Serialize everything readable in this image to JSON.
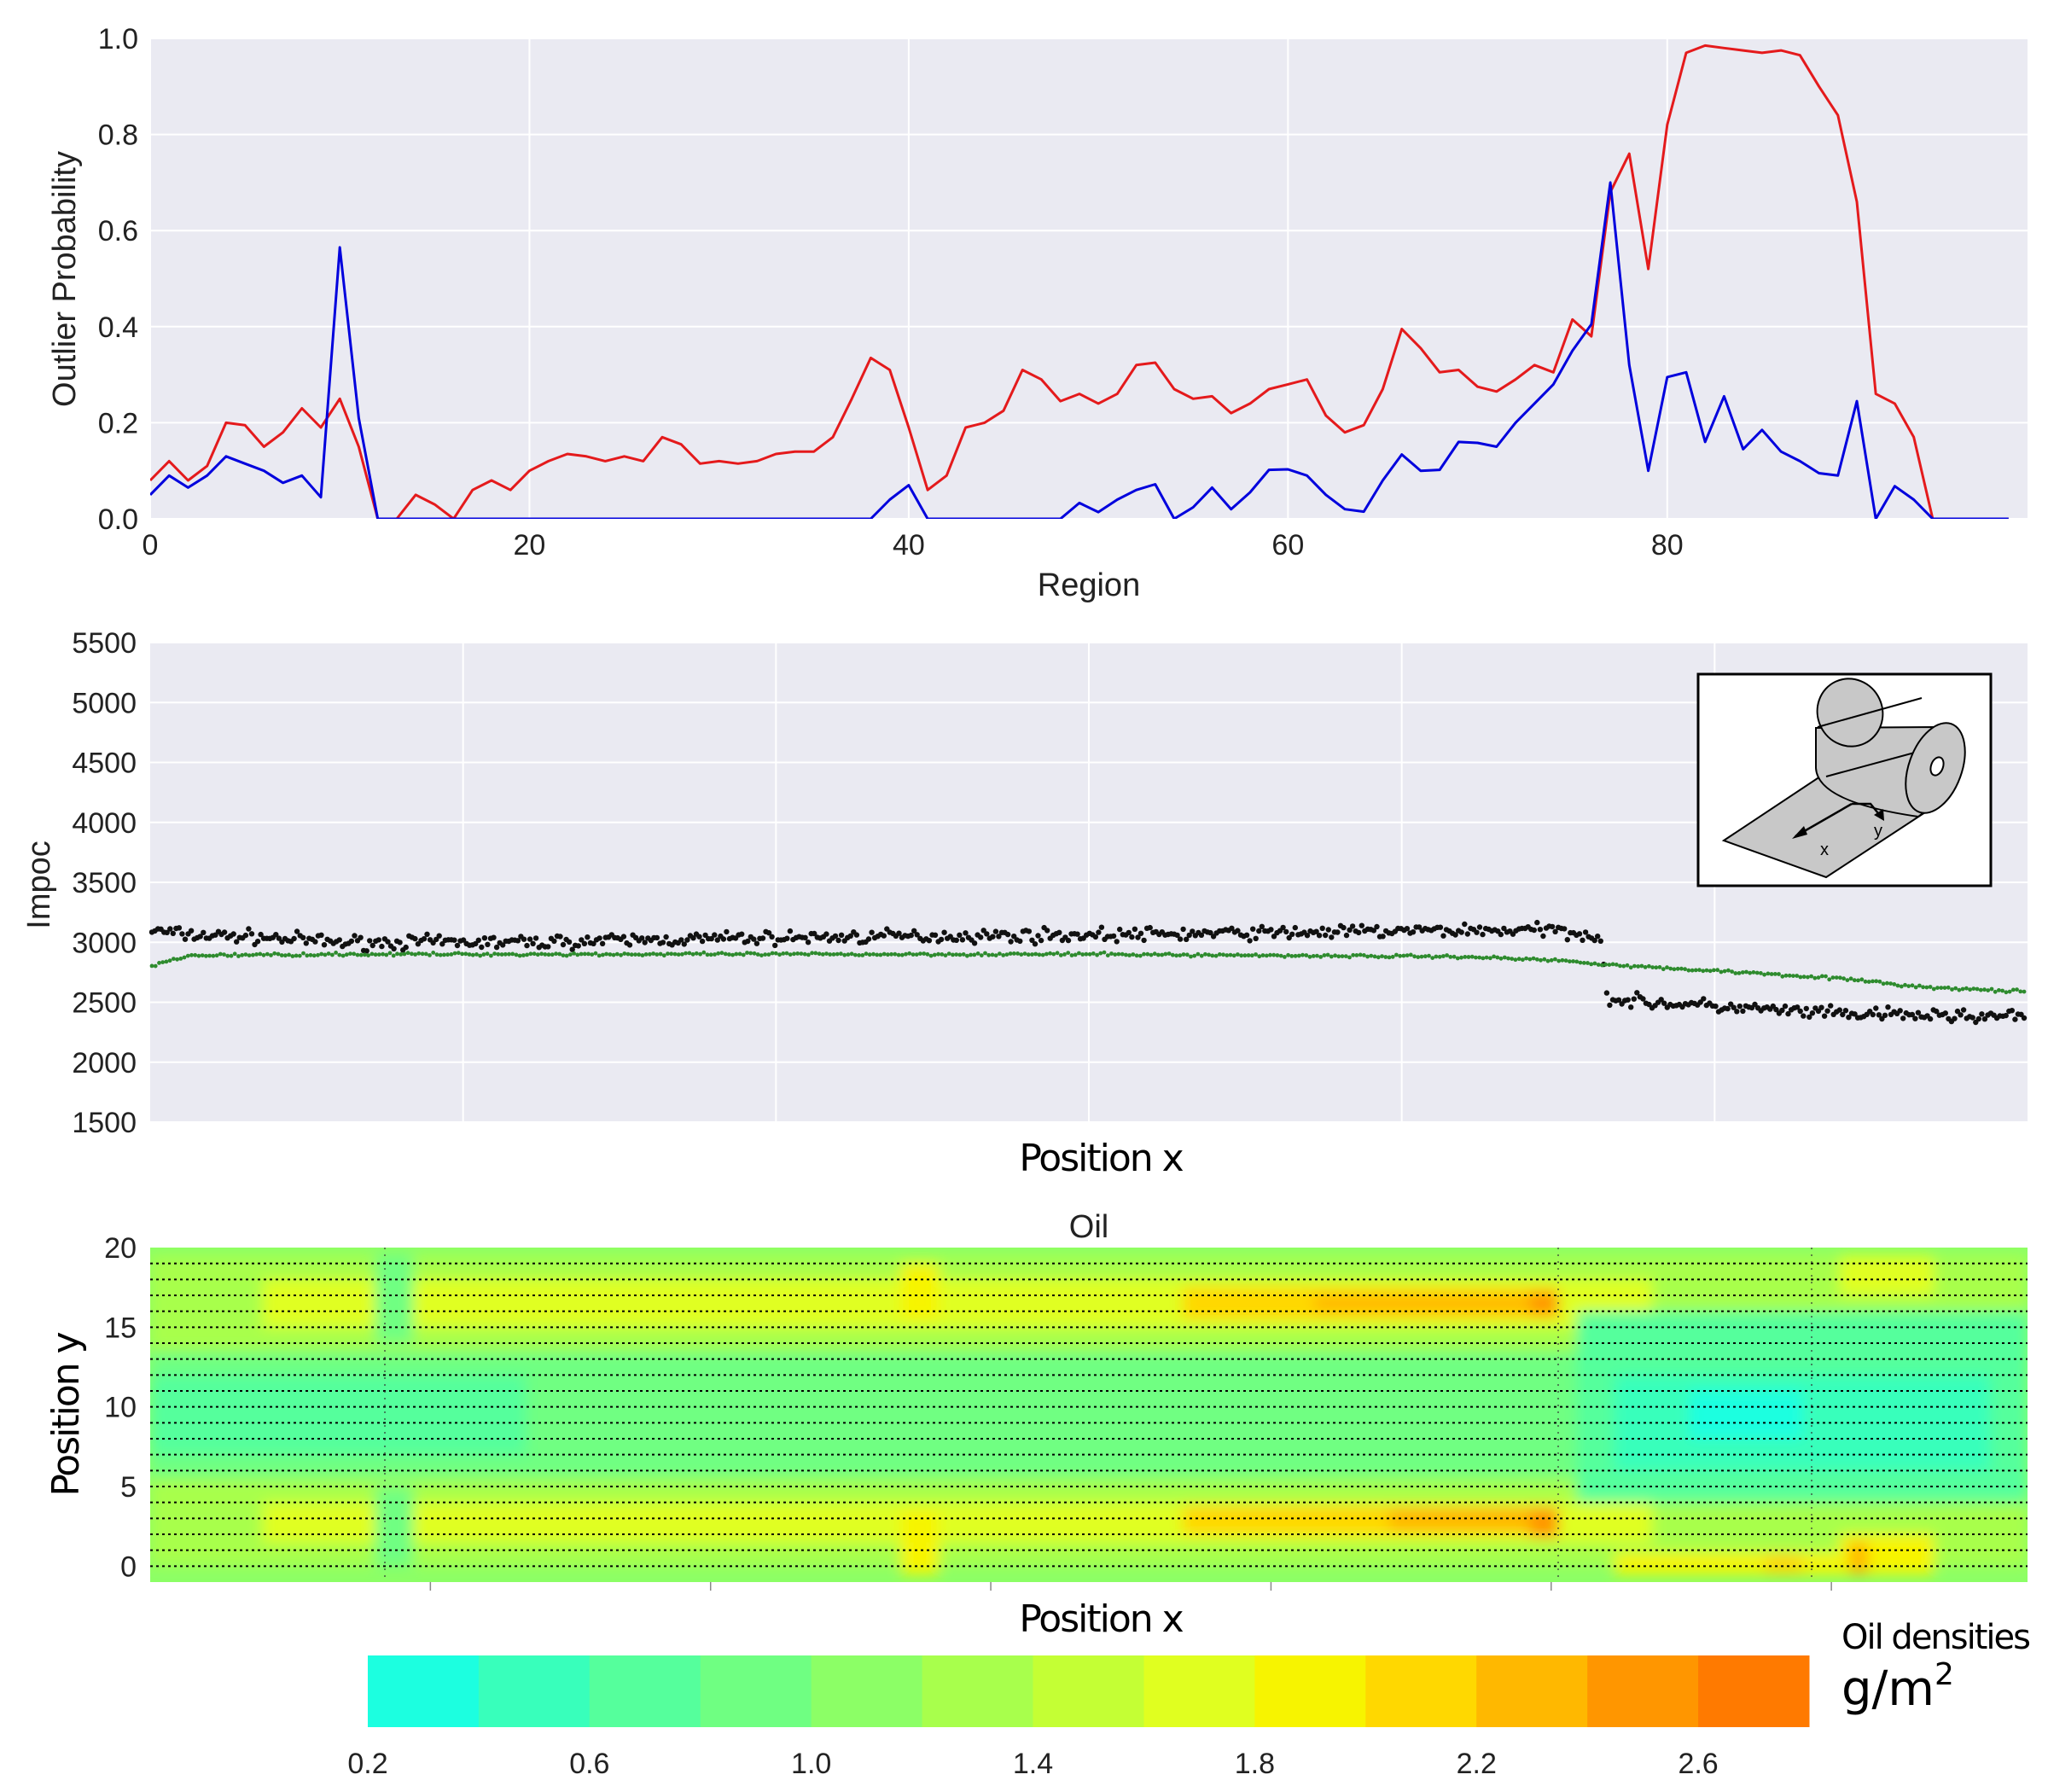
{
  "chart_data": [
    {
      "type": "line",
      "xlabel": "Region",
      "ylabel": "Outlier Probability",
      "xlim": [
        0,
        99
      ],
      "ylim": [
        0,
        1.0
      ],
      "xticks": [
        "0",
        "20",
        "40",
        "60",
        "80"
      ],
      "yticks": [
        "0.0",
        "0.2",
        "0.4",
        "0.6",
        "0.8",
        "1.0"
      ],
      "grid": true,
      "series": [
        {
          "color": "#e41a1c",
          "x_start": 0,
          "values": [
            0.08,
            0.12,
            0.08,
            0.11,
            0.2,
            0.195,
            0.15,
            0.18,
            0.23,
            0.19,
            0.25,
            0.15,
            0.0,
            0.0,
            0.05,
            0.03,
            0.0,
            0.06,
            0.08,
            0.06,
            0.1,
            0.12,
            0.135,
            0.13,
            0.12,
            0.13,
            0.12,
            0.17,
            0.155,
            0.115,
            0.12,
            0.115,
            0.12,
            0.135,
            0.14,
            0.14,
            0.17,
            0.25,
            0.335,
            0.31,
            0.19,
            0.06,
            0.09,
            0.19,
            0.2,
            0.225,
            0.31,
            0.29,
            0.245,
            0.26,
            0.24,
            0.26,
            0.32,
            0.325,
            0.27,
            0.25,
            0.255,
            0.22,
            0.24,
            0.27,
            0.28,
            0.29,
            0.215,
            0.18,
            0.195,
            0.27,
            0.395,
            0.355,
            0.305,
            0.31,
            0.275,
            0.265,
            0.29,
            0.32,
            0.305,
            0.415,
            0.38,
            0.68,
            0.76,
            0.52,
            0.82,
            0.97,
            0.985,
            0.98,
            0.975,
            0.97,
            0.975,
            0.965,
            0.9,
            0.84,
            0.66,
            0.26,
            0.24,
            0.17,
            0.0,
            0.0,
            0.0,
            0.0,
            0.0
          ]
        },
        {
          "color": "#0000dd",
          "x_start": 0,
          "values": [
            0.05,
            0.09,
            0.065,
            0.09,
            0.13,
            0.115,
            0.1,
            0.075,
            0.09,
            0.045,
            0.565,
            0.21,
            0.0,
            0.0,
            0.0,
            0.0,
            0.0,
            0.0,
            0.0,
            0.0,
            0.0,
            0.0,
            0.0,
            0.0,
            0.0,
            0.0,
            0.0,
            0.0,
            0.0,
            0.0,
            0.0,
            0.0,
            0.0,
            0.0,
            0.0,
            0.0,
            0.0,
            0.0,
            0.0,
            0.04,
            0.07,
            0.0,
            0.0,
            0.0,
            0.0,
            0.0,
            0.0,
            0.0,
            0.0,
            0.033,
            0.014,
            0.04,
            0.06,
            0.072,
            0.0,
            0.024,
            0.065,
            0.02,
            0.055,
            0.102,
            0.103,
            0.09,
            0.05,
            0.02,
            0.015,
            0.08,
            0.134,
            0.1,
            0.102,
            0.16,
            0.158,
            0.15,
            0.2,
            0.24,
            0.28,
            0.35,
            0.405,
            0.7,
            0.32,
            0.1,
            0.295,
            0.305,
            0.16,
            0.255,
            0.145,
            0.185,
            0.14,
            0.12,
            0.095,
            0.09,
            0.245,
            0.0,
            0.068,
            0.04,
            0.0,
            0.0,
            0.0,
            0.0,
            0.0
          ]
        }
      ]
    },
    {
      "type": "scatter",
      "xlabel": "Position x",
      "ylabel": "Impoc",
      "ylim": [
        1500,
        5500
      ],
      "yticks": [
        "1500",
        "2000",
        "2500",
        "3000",
        "3500",
        "4000",
        "4500",
        "5000",
        "5500"
      ],
      "xticks_labels_shown": false,
      "grid": true,
      "series": [
        {
          "color": "#111111",
          "x_profile": [
            0,
            0.02,
            0.05,
            0.1,
            0.2,
            0.3,
            0.4,
            0.5,
            0.6,
            0.7,
            0.75,
            0.775,
            0.776,
            0.8,
            0.85,
            0.9,
            1.0
          ],
          "y_profile": [
            3100,
            3060,
            3050,
            3000,
            3000,
            3030,
            3050,
            3060,
            3080,
            3100,
            3100,
            3050,
            2530,
            2500,
            2450,
            2400,
            2380
          ]
        },
        {
          "color": "#2e8b2e",
          "x_profile": [
            0,
            0.02,
            0.1,
            0.3,
            0.5,
            0.6,
            0.7,
            0.75,
            0.8,
            0.85,
            0.9,
            0.95,
            1.0
          ],
          "y_profile": [
            2800,
            2890,
            2900,
            2900,
            2900,
            2890,
            2880,
            2850,
            2790,
            2750,
            2700,
            2620,
            2590
          ]
        }
      ],
      "inset": {
        "labels": [
          "x",
          "y"
        ]
      }
    },
    {
      "type": "heatmap",
      "title": "Oil",
      "xlabel": "Position x",
      "ylabel": "Position y",
      "ylim": [
        -1,
        20
      ],
      "yticks": [
        "0",
        "5",
        "10",
        "15",
        "20"
      ],
      "colorbar": {
        "label": "Oil densities",
        "unit": "g/m",
        "unit_exp": "2",
        "ticks": [
          "0.2",
          "0.6",
          "1.0",
          "1.4",
          "1.8",
          "2.2",
          "2.6"
        ],
        "levels": [
          0.2,
          0.4,
          0.6,
          0.8,
          1.0,
          1.2,
          1.4,
          1.6,
          1.8,
          2.0,
          2.2,
          2.4,
          2.6,
          2.8
        ],
        "colors": [
          "#1cffe0",
          "#38ffbb",
          "#55ff9c",
          "#6fff82",
          "#8cff66",
          "#a8ff4c",
          "#c4ff34",
          "#e0ff20",
          "#f7f400",
          "#ffd800",
          "#ffb800",
          "#ff9600",
          "#ff7a00"
        ]
      }
    }
  ]
}
